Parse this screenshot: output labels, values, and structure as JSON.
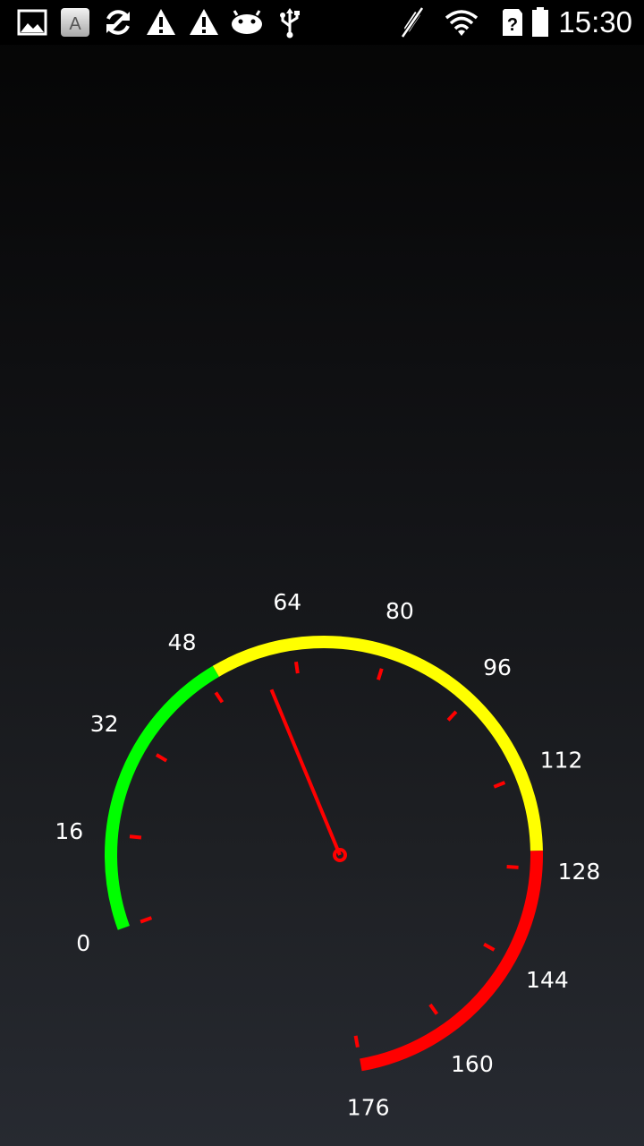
{
  "status_bar": {
    "time": "15:30",
    "left_icons": [
      "image-icon",
      "keyboard-a-icon",
      "sync-icon",
      "warning-icon",
      "warning-icon",
      "android-icon",
      "usb-icon"
    ],
    "right_icons": [
      "vibrate-off-icon",
      "wifi-icon",
      "no-sim-icon",
      "battery-icon"
    ],
    "letter_icon_text": "A"
  },
  "gauge": {
    "min": 0,
    "max": 176,
    "major_step": 16,
    "value": 55,
    "labels": [
      "0",
      "16",
      "32",
      "48",
      "64",
      "80",
      "96",
      "112",
      "128",
      "144",
      "160",
      "176"
    ],
    "ranges": [
      {
        "from": 0,
        "to": 50,
        "color": "#00ff00"
      },
      {
        "from": 50,
        "to": 125,
        "color": "#ffff00"
      },
      {
        "from": 125,
        "to": 176,
        "color": "#ff0000"
      }
    ],
    "tick_color": "#ff0000",
    "needle_color": "#ff0000"
  }
}
